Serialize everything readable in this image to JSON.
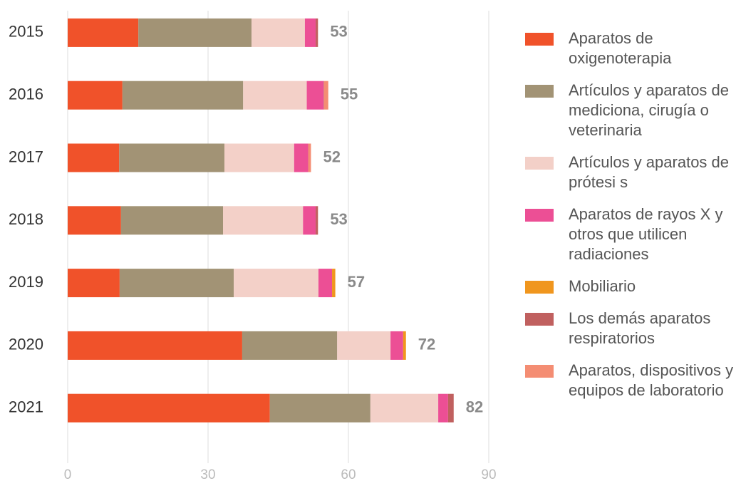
{
  "chart_data": {
    "type": "stacked-barh",
    "categories": [
      "2015",
      "2016",
      "2017",
      "2018",
      "2019",
      "2020",
      "2021"
    ],
    "series": [
      {
        "name": "Aparatos de oxigenoterapia",
        "color": "#f0522a",
        "values": [
          15.1,
          11.7,
          11.0,
          11.4,
          11.1,
          37.3,
          43.2
        ]
      },
      {
        "name": "Artículos y aparatos de mediciona, cirugía o veterinaria",
        "color": "#a29375",
        "values": [
          24.2,
          25.8,
          22.5,
          21.8,
          24.4,
          20.3,
          21.5
        ]
      },
      {
        "name": "Artículos y aparatos de prótesi s",
        "color": "#f3d0c8",
        "values": [
          11.4,
          13.6,
          14.9,
          17.1,
          18.1,
          11.4,
          14.5
        ]
      },
      {
        "name": "Aparatos de rayos X y otros que utilicen radiaciones",
        "color": "#ec4f95",
        "values": [
          2.3,
          3.6,
          3.0,
          2.7,
          2.9,
          2.7,
          2.1
        ]
      },
      {
        "name": "Mobiliario",
        "color": "#f0961e",
        "values": [
          0,
          0,
          0,
          0,
          0.7,
          0.6,
          0
        ]
      },
      {
        "name": "Los demás aparatos respiratorios",
        "color": "#c0605f",
        "values": [
          0.5,
          0.1,
          0,
          0.5,
          0,
          0,
          1.2
        ]
      },
      {
        "name": "Aparatos, dispositivos y equipos de laboratorio",
        "color": "#f48d73",
        "values": [
          0,
          0.9,
          0.6,
          0,
          0,
          0,
          0
        ]
      }
    ],
    "totals": [
      53,
      55,
      52,
      53,
      57,
      72,
      82
    ],
    "xlim": [
      0,
      90
    ],
    "xticks": [
      0,
      30,
      60,
      90
    ],
    "grid": true
  }
}
